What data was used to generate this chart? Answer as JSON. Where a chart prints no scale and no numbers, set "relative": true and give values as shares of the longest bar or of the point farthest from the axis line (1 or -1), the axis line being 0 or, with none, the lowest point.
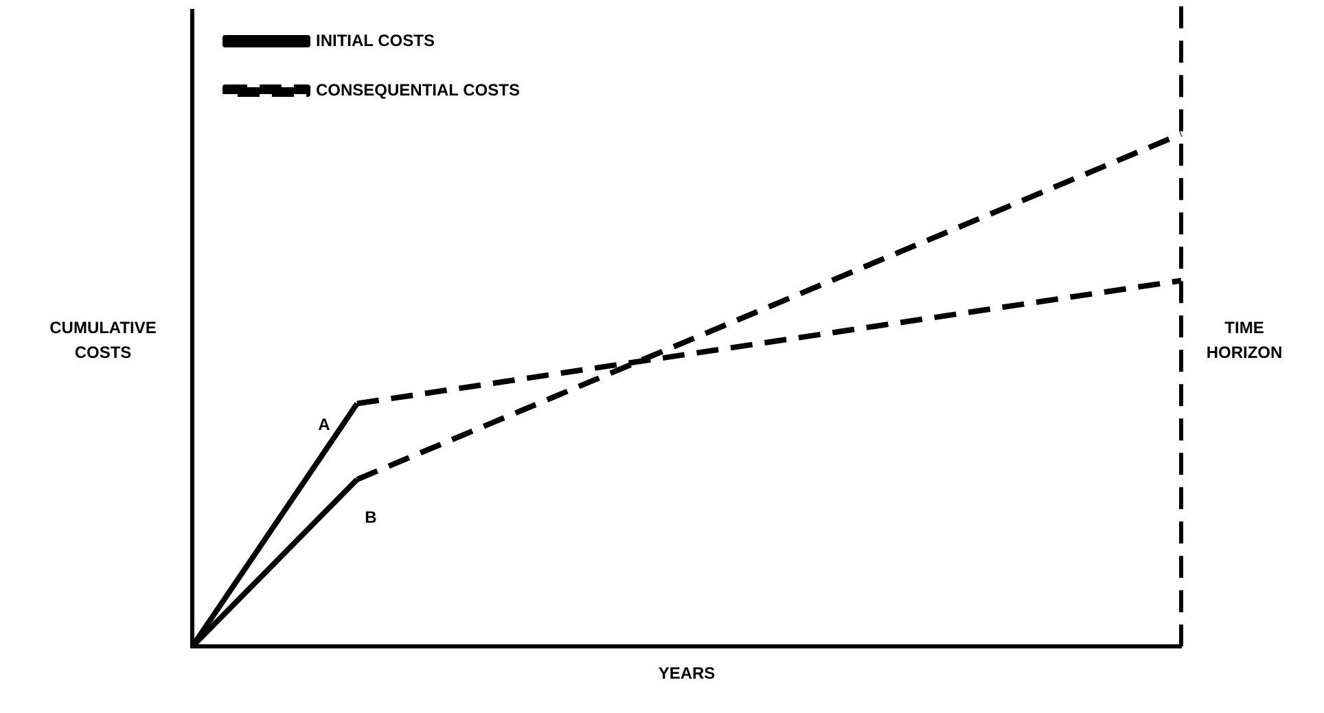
{
  "chart_data": {
    "type": "line",
    "relative": true,
    "xlabel": "YEARS",
    "ylabel": "CUMULATIVE COSTS",
    "legend": "top left",
    "marker": "none",
    "categories": [
      null,
      null,
      null,
      null,
      null,
      null,
      null
    ],
    "series": [
      {
        "name": "INITIAL COSTS",
        "color": "#000000",
        "line_style": "solid",
        "values": [
          0,
          0.474,
          null,
          null,
          null,
          null,
          null
        ]
      },
      {
        "color": "#000000",
        "line_style": "solid",
        "values": [
          0,
          0.326,
          null,
          null,
          null,
          null,
          null
        ]
      },
      {
        "name": "CONSEQUENTIAL COSTS",
        "color": "#000000",
        "line_style": "dashed",
        "values": [
          null,
          0.474,
          null,
          null,
          null,
          null,
          0.714
        ]
      },
      {
        "color": "#000000",
        "line_style": "dashed",
        "values": [
          null,
          0.326,
          null,
          null,
          null,
          null,
          1
        ]
      }
    ],
    "ref_lines": [
      {
        "axis": "x",
        "label": "TIME HORIZON",
        "color": "#000000",
        "line_style": "dashed"
      }
    ],
    "annotations": [
      "A",
      "B"
    ]
  }
}
